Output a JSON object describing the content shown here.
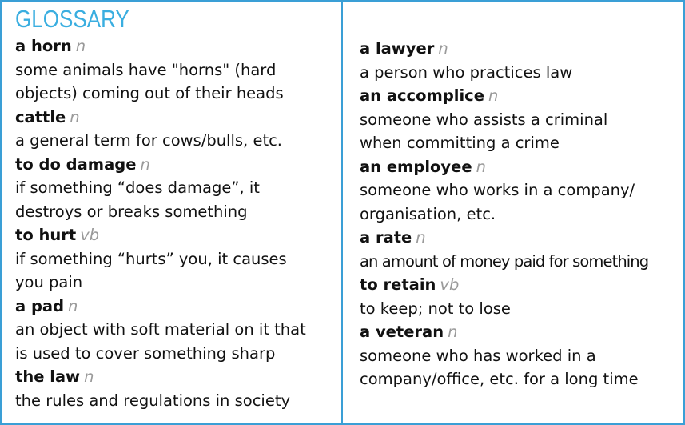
{
  "glossary": {
    "title": "GLOSSARY",
    "left": [
      {
        "term": "a horn",
        "pos": "n",
        "definition": "some animals have \"horns\" (hard\nobjects) coming out of their heads"
      },
      {
        "term": "cattle",
        "pos": "n",
        "definition": "a general term for cows/bulls, etc."
      },
      {
        "term": "to do damage",
        "pos": "n",
        "definition": "if something “does damage”, it\ndestroys or breaks something"
      },
      {
        "term": "to hurt",
        "pos": "vb",
        "definition": "if something “hurts” you, it causes\nyou pain"
      },
      {
        "term": "a pad",
        "pos": "n",
        "definition": "an object with soft material on it that\nis used to cover something sharp"
      },
      {
        "term": "the law",
        "pos": "n",
        "definition": "the rules and regulations in society"
      }
    ],
    "right": [
      {
        "term": "a lawyer",
        "pos": "n",
        "definition": "a person who practices law"
      },
      {
        "term": "an accomplice",
        "pos": "n",
        "definition": "someone who assists a criminal\nwhen committing a crime"
      },
      {
        "term": "an employee",
        "pos": "n",
        "definition": "someone who works in a company/\norganisation, etc."
      },
      {
        "term": "a rate",
        "pos": "n",
        "definition": "an amount of money paid for something"
      },
      {
        "term": "to retain",
        "pos": "vb",
        "definition": "to keep; not to lose"
      },
      {
        "term": "a veteran",
        "pos": "n",
        "definition": "someone who has worked in a\ncompany/office, etc. for a long time"
      }
    ]
  },
  "colors": {
    "accent": "#3aaee0",
    "border": "#3a9fd6",
    "pos": "#9a9a9a",
    "text": "#111111"
  }
}
